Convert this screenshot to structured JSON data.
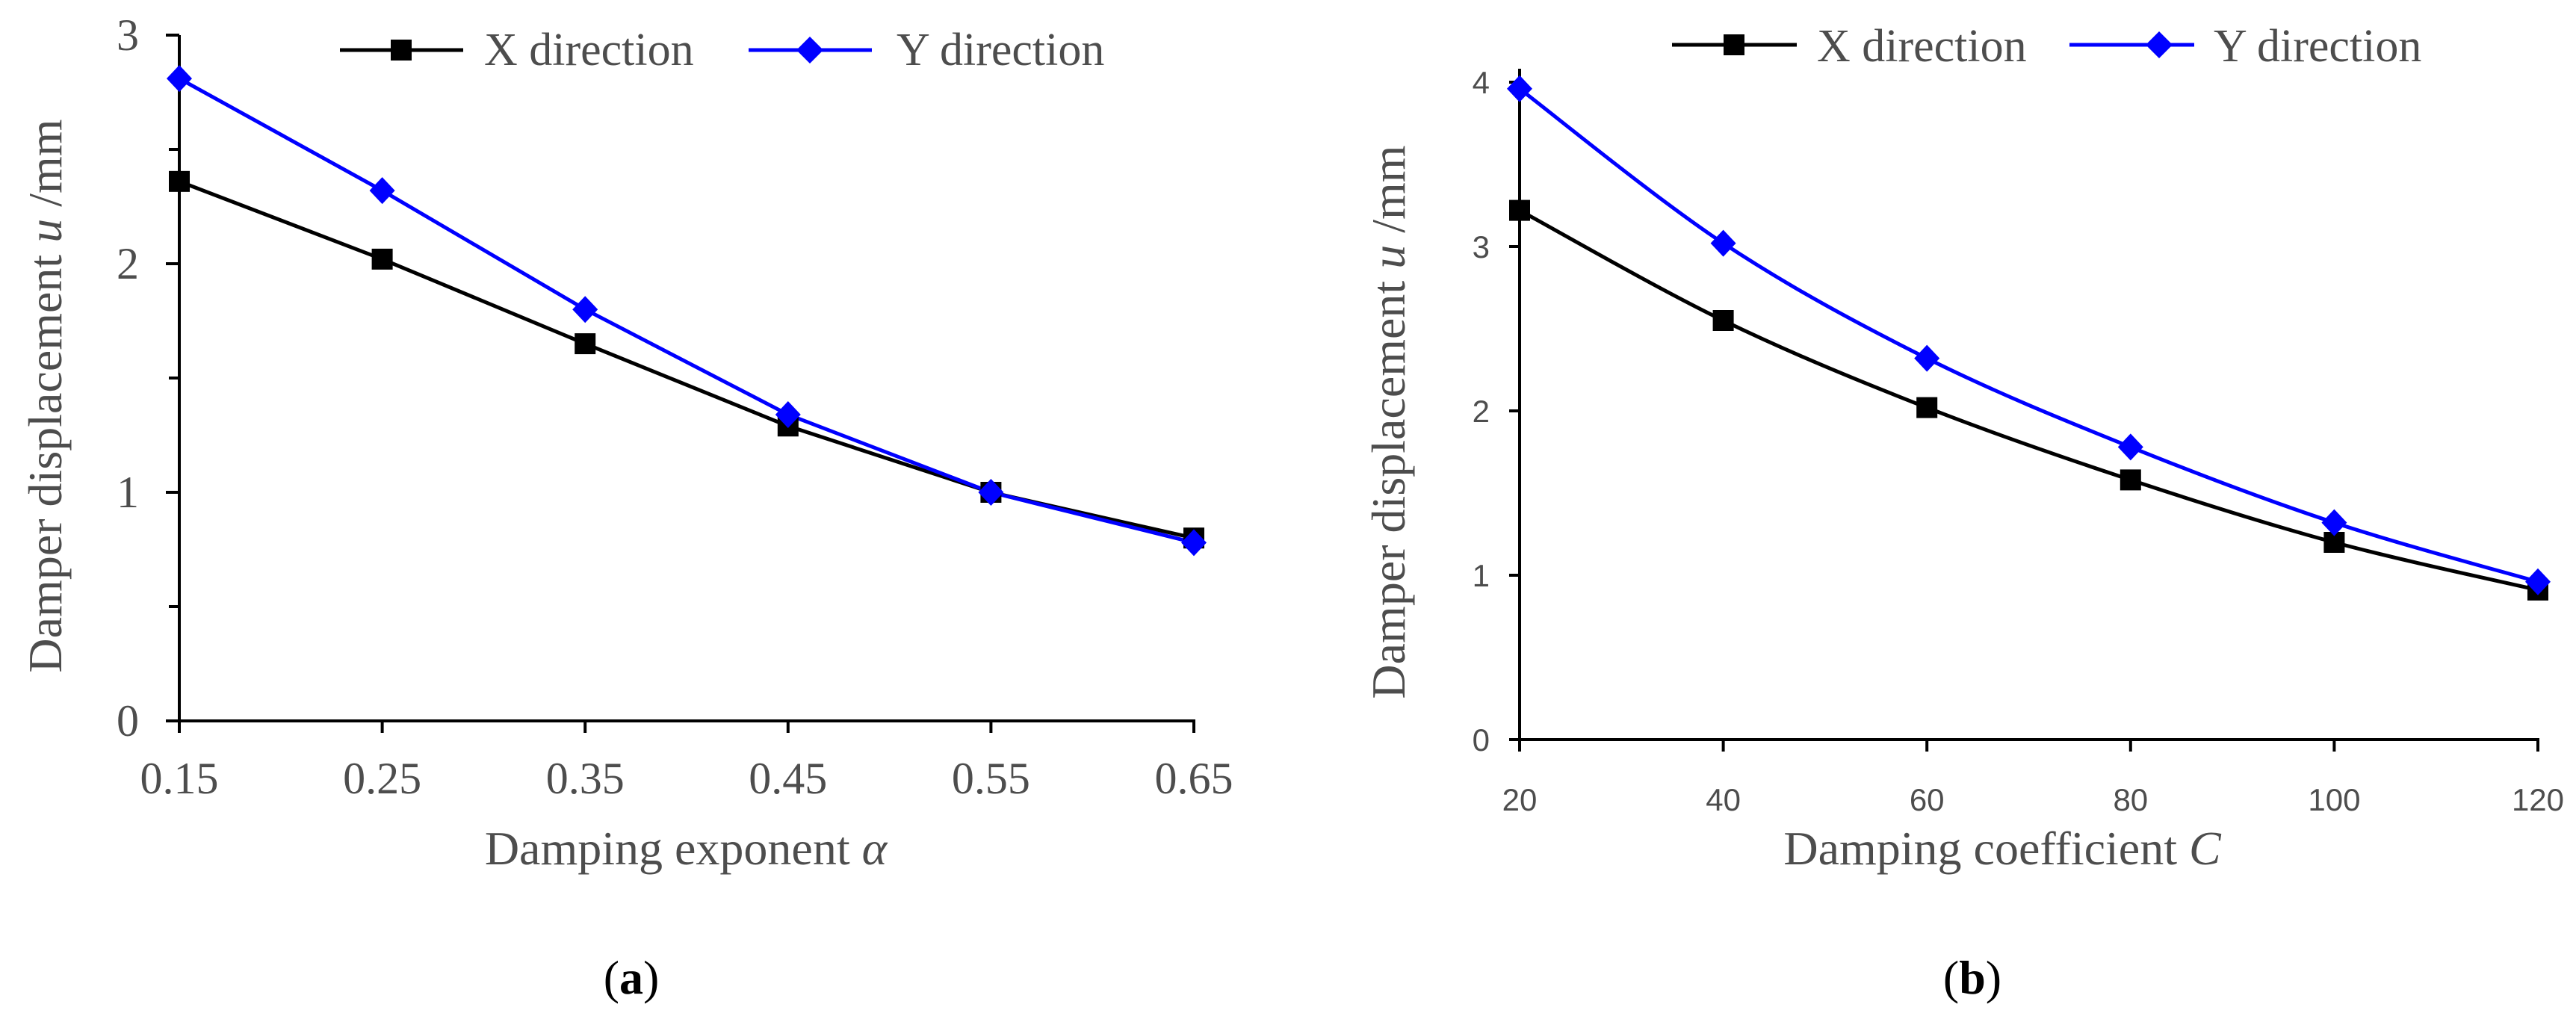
{
  "chart_data": [
    {
      "id": "a",
      "type": "line",
      "panel_label": "a",
      "xlabel_text": "Damping exponent ",
      "xlabel_symbol": "α",
      "ylabel_text": "Damper displacement ",
      "ylabel_symbol": "u",
      "ylabel_unit": " /mm",
      "categories": [
        "0.15",
        "0.25",
        "0.35",
        "0.45",
        "0.55",
        "0.65"
      ],
      "ylim": [
        0,
        3
      ],
      "yticks": [
        "0",
        "1",
        "2",
        "3"
      ],
      "minor_step": 0.5,
      "smooth": false,
      "series": [
        {
          "name": "X direction",
          "marker": "square",
          "color": "#000000",
          "values": [
            2.36,
            2.02,
            1.65,
            1.29,
            1.0,
            0.8
          ]
        },
        {
          "name": "Y direction",
          "marker": "diamond",
          "color": "#0000ff",
          "values": [
            2.81,
            2.32,
            1.8,
            1.34,
            1.0,
            0.78
          ]
        }
      ]
    },
    {
      "id": "b",
      "type": "line",
      "panel_label": "b",
      "xlabel_text": "Damping coefficient ",
      "xlabel_symbol": "C",
      "ylabel_text": "Damper displacement ",
      "ylabel_symbol": "u",
      "ylabel_unit": " /mm",
      "categories": [
        "20",
        "40",
        "60",
        "80",
        "100",
        "120"
      ],
      "ylim": [
        0,
        4
      ],
      "yticks": [
        "0",
        "1",
        "2",
        "3",
        "4"
      ],
      "minor_step": null,
      "smooth": true,
      "series": [
        {
          "name": "X direction",
          "marker": "square",
          "color": "#000000",
          "values": [
            3.22,
            2.55,
            2.02,
            1.58,
            1.2,
            0.91
          ]
        },
        {
          "name": "Y direction",
          "marker": "diamond",
          "color": "#0000ff",
          "values": [
            3.96,
            3.02,
            2.32,
            1.78,
            1.32,
            0.96
          ]
        }
      ]
    }
  ]
}
